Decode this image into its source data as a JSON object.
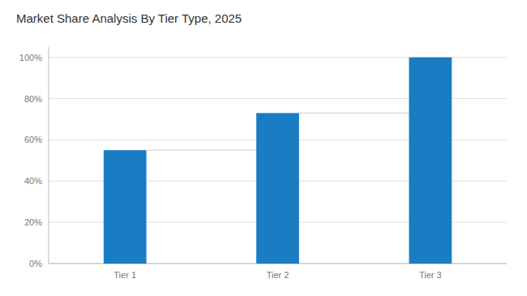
{
  "chart_data": {
    "type": "bar",
    "title": "Market Share Analysis By Tier Type, 2025",
    "categories": [
      "Tier 1",
      "Tier 2",
      "Tier 3"
    ],
    "values": [
      55,
      73,
      100
    ],
    "color": "#1A7DC4",
    "ylim": [
      0,
      105
    ],
    "yticks": [
      {
        "value": 0,
        "label": "0%"
      },
      {
        "value": 20,
        "label": "20%"
      },
      {
        "value": 40,
        "label": "40%"
      },
      {
        "value": 60,
        "label": "60%"
      },
      {
        "value": 80,
        "label": "80%"
      },
      {
        "value": 100,
        "label": "100%"
      }
    ],
    "grid": true
  }
}
